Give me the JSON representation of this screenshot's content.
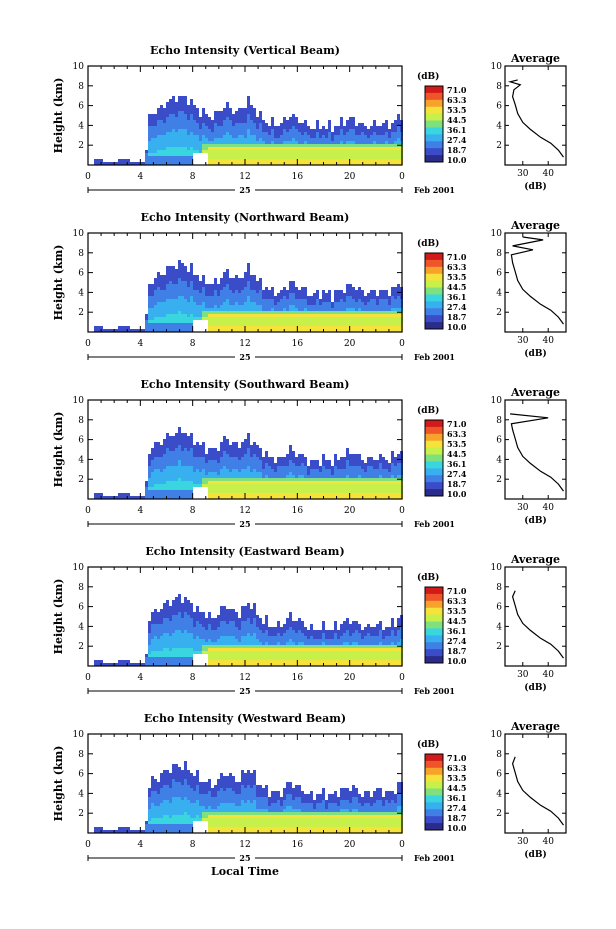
{
  "colors": {
    "scale": [
      "#2b2b8a",
      "#3b4cc8",
      "#3f7fe6",
      "#38b0f0",
      "#39d6e0",
      "#7fe07f",
      "#c8f04a",
      "#f5e23a",
      "#f7a22a",
      "#f0552a",
      "#d11b1b"
    ]
  },
  "chart_data": [
    {
      "type": "heatmap",
      "title": "Echo Intensity (Vertical Beam)",
      "ylabel": "Height (km)",
      "xlim": [
        0,
        24
      ],
      "ylim": [
        0,
        10
      ],
      "xticks": [
        "0",
        "4",
        "8",
        "12",
        "16",
        "20",
        "0"
      ],
      "yticks": [
        "2",
        "4",
        "6",
        "8",
        "10"
      ],
      "date_day": "25",
      "date_label": "Feb 2001",
      "colorbar_unit": "(dB)",
      "colorbar_ticks": [
        "71.0",
        "63.3",
        "53.5",
        "44.5",
        "36.1",
        "27.4",
        "18.7",
        "10.0"
      ],
      "cloud_top_km": [
        [
          4.3,
          0.6
        ],
        [
          4.6,
          5.2
        ],
        [
          5.5,
          6.0
        ],
        [
          6.5,
          6.9
        ],
        [
          7.2,
          7.1
        ],
        [
          7.8,
          6.4
        ],
        [
          8.5,
          5.6
        ],
        [
          9.5,
          5.0
        ],
        [
          10.5,
          6.3
        ],
        [
          11.3,
          5.4
        ],
        [
          12.2,
          6.6
        ],
        [
          13.0,
          5.2
        ],
        [
          13.7,
          4.4
        ],
        [
          14.5,
          4.1
        ],
        [
          15.3,
          5.2
        ],
        [
          16.2,
          4.6
        ],
        [
          17.0,
          3.8
        ],
        [
          17.8,
          4.2
        ],
        [
          18.6,
          3.9
        ],
        [
          19.5,
          4.6
        ],
        [
          20.2,
          4.8
        ],
        [
          21.0,
          4.0
        ],
        [
          22.0,
          4.4
        ],
        [
          23.0,
          4.2
        ],
        [
          24.0,
          5.4
        ]
      ],
      "profile_title": "Average",
      "profile_xticks": [
        "30",
        "40"
      ],
      "profile_yticks": [
        "2",
        "4",
        "6",
        "8",
        "10"
      ],
      "profile_xlabel": "(dB)",
      "profile_xlim": [
        23,
        47
      ],
      "profile": [
        [
          46,
          0.8
        ],
        [
          44,
          1.5
        ],
        [
          41,
          2.2
        ],
        [
          37,
          2.8
        ],
        [
          33,
          3.6
        ],
        [
          30,
          4.3
        ],
        [
          28,
          5.2
        ],
        [
          27,
          6.1
        ],
        [
          26,
          6.9
        ],
        [
          26.5,
          7.6
        ],
        [
          29,
          8.1
        ],
        [
          25,
          8.4
        ],
        [
          28,
          8.6
        ]
      ]
    },
    {
      "type": "heatmap",
      "title": "Echo Intensity (Northward Beam)",
      "ylabel": "Height (km)",
      "xlim": [
        0,
        24
      ],
      "ylim": [
        0,
        10
      ],
      "xticks": [
        "0",
        "4",
        "8",
        "12",
        "16",
        "20",
        "0"
      ],
      "yticks": [
        "2",
        "4",
        "6",
        "8",
        "10"
      ],
      "date_day": "25",
      "date_label": "Feb 2001",
      "colorbar_unit": "(dB)",
      "colorbar_ticks": [
        "71.0",
        "63.3",
        "53.5",
        "44.5",
        "36.1",
        "27.4",
        "18.7",
        "10.0"
      ],
      "cloud_top_km": [
        [
          4.3,
          0.6
        ],
        [
          4.6,
          5.2
        ],
        [
          5.5,
          6.0
        ],
        [
          6.5,
          6.9
        ],
        [
          7.2,
          7.1
        ],
        [
          7.8,
          6.4
        ],
        [
          8.5,
          5.6
        ],
        [
          9.5,
          5.0
        ],
        [
          10.5,
          6.3
        ],
        [
          11.3,
          5.4
        ],
        [
          12.2,
          6.6
        ],
        [
          13.0,
          5.2
        ],
        [
          13.7,
          4.4
        ],
        [
          14.5,
          4.1
        ],
        [
          15.3,
          5.2
        ],
        [
          16.2,
          4.6
        ],
        [
          17.0,
          3.8
        ],
        [
          17.8,
          4.2
        ],
        [
          18.6,
          3.9
        ],
        [
          19.5,
          4.6
        ],
        [
          20.2,
          4.8
        ],
        [
          21.0,
          4.0
        ],
        [
          22.0,
          4.4
        ],
        [
          23.0,
          4.2
        ],
        [
          24.0,
          5.4
        ]
      ],
      "profile_title": "Average",
      "profile_xticks": [
        "30",
        "40"
      ],
      "profile_yticks": [
        "2",
        "4",
        "6",
        "8",
        "10"
      ],
      "profile_xlabel": "(dB)",
      "profile_xlim": [
        23,
        47
      ],
      "profile": [
        [
          46,
          0.8
        ],
        [
          44,
          1.5
        ],
        [
          41,
          2.2
        ],
        [
          37,
          2.8
        ],
        [
          33,
          3.6
        ],
        [
          30,
          4.3
        ],
        [
          28,
          5.2
        ],
        [
          27,
          6.1
        ],
        [
          26,
          7.0
        ],
        [
          25.5,
          7.8
        ],
        [
          34,
          8.3
        ],
        [
          26,
          8.7
        ],
        [
          38,
          9.3
        ],
        [
          30,
          9.6
        ]
      ]
    },
    {
      "type": "heatmap",
      "title": "Echo Intensity (Southward Beam)",
      "ylabel": "Height (km)",
      "xlim": [
        0,
        24
      ],
      "ylim": [
        0,
        10
      ],
      "xticks": [
        "0",
        "4",
        "8",
        "12",
        "16",
        "20",
        "0"
      ],
      "yticks": [
        "2",
        "4",
        "6",
        "8",
        "10"
      ],
      "date_day": "25",
      "date_label": "Feb 2001",
      "colorbar_unit": "(dB)",
      "colorbar_ticks": [
        "71.0",
        "63.3",
        "53.5",
        "44.5",
        "36.1",
        "27.4",
        "18.7",
        "10.0"
      ],
      "cloud_top_km": [
        [
          4.3,
          0.6
        ],
        [
          4.6,
          5.2
        ],
        [
          5.5,
          6.0
        ],
        [
          6.5,
          6.9
        ],
        [
          7.2,
          7.1
        ],
        [
          7.8,
          6.4
        ],
        [
          8.5,
          5.6
        ],
        [
          9.5,
          5.0
        ],
        [
          10.5,
          6.3
        ],
        [
          11.3,
          5.4
        ],
        [
          12.2,
          6.6
        ],
        [
          13.0,
          5.2
        ],
        [
          13.7,
          4.4
        ],
        [
          14.5,
          4.1
        ],
        [
          15.3,
          5.2
        ],
        [
          16.2,
          4.6
        ],
        [
          17.0,
          3.8
        ],
        [
          17.8,
          4.2
        ],
        [
          18.6,
          3.9
        ],
        [
          19.5,
          4.6
        ],
        [
          20.2,
          4.8
        ],
        [
          21.0,
          4.0
        ],
        [
          22.0,
          4.4
        ],
        [
          23.0,
          4.2
        ],
        [
          24.0,
          5.4
        ]
      ],
      "profile_title": "Average",
      "profile_xticks": [
        "30",
        "40"
      ],
      "profile_yticks": [
        "2",
        "4",
        "6",
        "8",
        "10"
      ],
      "profile_xlabel": "(dB)",
      "profile_xlim": [
        23,
        47
      ],
      "profile": [
        [
          46,
          0.8
        ],
        [
          44,
          1.5
        ],
        [
          41,
          2.2
        ],
        [
          37,
          2.8
        ],
        [
          33,
          3.6
        ],
        [
          30,
          4.3
        ],
        [
          28,
          5.2
        ],
        [
          27,
          6.1
        ],
        [
          26,
          7.0
        ],
        [
          25.5,
          7.6
        ],
        [
          40,
          8.2
        ],
        [
          25,
          8.6
        ]
      ]
    },
    {
      "type": "heatmap",
      "title": "Echo Intensity (Eastward Beam)",
      "ylabel": "Height (km)",
      "xlim": [
        0,
        24
      ],
      "ylim": [
        0,
        10
      ],
      "xticks": [
        "0",
        "4",
        "8",
        "12",
        "16",
        "20",
        "0"
      ],
      "yticks": [
        "2",
        "4",
        "6",
        "8",
        "10"
      ],
      "date_day": "25",
      "date_label": "Feb 2001",
      "colorbar_unit": "(dB)",
      "colorbar_ticks": [
        "71.0",
        "63.3",
        "53.5",
        "44.5",
        "36.1",
        "27.4",
        "18.7",
        "10.0"
      ],
      "cloud_top_km": [
        [
          4.3,
          0.6
        ],
        [
          4.6,
          5.2
        ],
        [
          5.5,
          6.0
        ],
        [
          6.5,
          6.9
        ],
        [
          7.2,
          7.1
        ],
        [
          7.8,
          6.4
        ],
        [
          8.5,
          5.6
        ],
        [
          9.5,
          5.0
        ],
        [
          10.5,
          6.3
        ],
        [
          11.3,
          5.4
        ],
        [
          12.2,
          6.6
        ],
        [
          13.0,
          5.2
        ],
        [
          13.7,
          4.4
        ],
        [
          14.5,
          4.1
        ],
        [
          15.3,
          5.2
        ],
        [
          16.2,
          4.6
        ],
        [
          17.0,
          3.8
        ],
        [
          17.8,
          4.2
        ],
        [
          18.6,
          3.9
        ],
        [
          19.5,
          4.6
        ],
        [
          20.2,
          4.8
        ],
        [
          21.0,
          4.0
        ],
        [
          22.0,
          4.4
        ],
        [
          23.0,
          4.2
        ],
        [
          24.0,
          5.4
        ]
      ],
      "profile_title": "Average",
      "profile_xticks": [
        "30",
        "40"
      ],
      "profile_yticks": [
        "2",
        "4",
        "6",
        "8",
        "10"
      ],
      "profile_xlabel": "(dB)",
      "profile_xlim": [
        23,
        47
      ],
      "profile": [
        [
          46,
          0.8
        ],
        [
          44,
          1.5
        ],
        [
          41,
          2.2
        ],
        [
          37,
          2.8
        ],
        [
          33,
          3.6
        ],
        [
          30,
          4.3
        ],
        [
          28,
          5.2
        ],
        [
          27,
          6.1
        ],
        [
          26,
          7.0
        ],
        [
          27,
          7.6
        ]
      ]
    },
    {
      "type": "heatmap",
      "title": "Echo Intensity (Westward Beam)",
      "ylabel": "Height (km)",
      "xlabel": "Local Time",
      "xlim": [
        0,
        24
      ],
      "ylim": [
        0,
        10
      ],
      "xticks": [
        "0",
        "4",
        "8",
        "12",
        "16",
        "20",
        "0"
      ],
      "yticks": [
        "2",
        "4",
        "6",
        "8",
        "10"
      ],
      "date_day": "25",
      "date_label": "Feb 2001",
      "colorbar_unit": "(dB)",
      "colorbar_ticks": [
        "71.0",
        "63.3",
        "53.5",
        "44.5",
        "36.1",
        "27.4",
        "18.7",
        "10.0"
      ],
      "cloud_top_km": [
        [
          4.3,
          0.6
        ],
        [
          4.6,
          5.2
        ],
        [
          5.5,
          6.0
        ],
        [
          6.5,
          6.9
        ],
        [
          7.2,
          7.1
        ],
        [
          7.8,
          6.4
        ],
        [
          8.5,
          5.6
        ],
        [
          9.5,
          5.0
        ],
        [
          10.5,
          6.3
        ],
        [
          11.3,
          5.4
        ],
        [
          12.2,
          6.6
        ],
        [
          13.0,
          5.2
        ],
        [
          13.7,
          4.4
        ],
        [
          14.5,
          4.1
        ],
        [
          15.3,
          5.2
        ],
        [
          16.2,
          4.6
        ],
        [
          17.0,
          3.8
        ],
        [
          17.8,
          4.2
        ],
        [
          18.6,
          3.9
        ],
        [
          19.5,
          4.6
        ],
        [
          20.2,
          4.8
        ],
        [
          21.0,
          4.0
        ],
        [
          22.0,
          4.4
        ],
        [
          23.0,
          4.2
        ],
        [
          24.0,
          5.4
        ]
      ],
      "profile_title": "Average",
      "profile_xticks": [
        "30",
        "40"
      ],
      "profile_yticks": [
        "2",
        "4",
        "6",
        "8",
        "10"
      ],
      "profile_xlabel": "(dB)",
      "profile_xlim": [
        23,
        47
      ],
      "profile": [
        [
          46,
          0.8
        ],
        [
          44,
          1.5
        ],
        [
          41,
          2.2
        ],
        [
          37,
          2.8
        ],
        [
          33,
          3.6
        ],
        [
          30,
          4.3
        ],
        [
          28,
          5.2
        ],
        [
          27,
          6.1
        ],
        [
          26,
          7.0
        ],
        [
          27,
          7.7
        ]
      ]
    }
  ]
}
